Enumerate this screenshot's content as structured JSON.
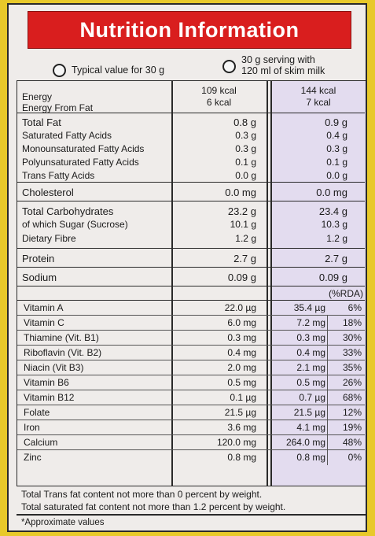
{
  "title": "Nutrition Information",
  "options": {
    "option1": "Typical value for 30 g",
    "option2_line1": "30 g serving with",
    "option2_line2": "120 ml of skim milk"
  },
  "energy": {
    "label_energy": "Energy",
    "label_fat": "Energy From Fat",
    "col1_energy": "109 kcal",
    "col1_fat": "6 kcal",
    "col2_energy": "144 kcal",
    "col2_fat": "7 kcal"
  },
  "fats": [
    {
      "label": "Total Fat",
      "col1": "0.8 g",
      "col2": "0.9 g"
    },
    {
      "label": "Saturated Fatty Acids",
      "col1": "0.3 g",
      "col2": "0.4 g"
    },
    {
      "label": "Monounsaturated Fatty Acids",
      "col1": "0.3 g",
      "col2": "0.3 g"
    },
    {
      "label": "Polyunsaturated Fatty Acids",
      "col1": "0.1 g",
      "col2": "0.1 g"
    },
    {
      "label": "Trans Fatty Acids",
      "col1": "0.0 g",
      "col2": "0.0 g"
    }
  ],
  "cholesterol": {
    "label": "Cholesterol",
    "col1": "0.0 mg",
    "col2": "0.0 mg"
  },
  "carbs": [
    {
      "label": "Total Carbohydrates",
      "col1": "23.2 g",
      "col2": "23.4 g"
    },
    {
      "label": "of which Sugar (Sucrose)",
      "col1": "10.1 g",
      "col2": "10.3 g"
    },
    {
      "label": "Dietary Fibre",
      "col1": "1.2 g",
      "col2": "1.2 g"
    }
  ],
  "protein": {
    "label": "Protein",
    "col1": "2.7 g",
    "col2": "2.7 g"
  },
  "sodium": {
    "label": "Sodium",
    "col1": "0.09 g",
    "col2": "0.09 g"
  },
  "rda_header": "(%RDA)",
  "vitamins": [
    {
      "label": "Vitamin A",
      "col1": "22.0 µg",
      "col2": "35.4 µg",
      "rda": "6%"
    },
    {
      "label": "Vitamin C",
      "col1": "6.0 mg",
      "col2": "7.2 mg",
      "rda": "18%"
    },
    {
      "label": "Thiamine (Vit. B1)",
      "col1": "0.3 mg",
      "col2": "0.3 mg",
      "rda": "30%"
    },
    {
      "label": "Riboflavin (Vit. B2)",
      "col1": "0.4 mg",
      "col2": "0.4 mg",
      "rda": "33%"
    },
    {
      "label": "Niacin (Vit B3)",
      "col1": "2.0 mg",
      "col2": "2.1 mg",
      "rda": "35%"
    },
    {
      "label": "Vitamin B6",
      "col1": "0.5 mg",
      "col2": "0.5 mg",
      "rda": "26%"
    },
    {
      "label": "Vitamin B12",
      "col1": "0.1 µg",
      "col2": "0.7 µg",
      "rda": "68%"
    },
    {
      "label": "Folate",
      "col1": "21.5 µg",
      "col2": "21.5 µg",
      "rda": "12%"
    },
    {
      "label": "Iron",
      "col1": "3.6 mg",
      "col2": "4.1 mg",
      "rda": "19%"
    },
    {
      "label": "Calcium",
      "col1": "120.0 mg",
      "col2": "264.0 mg",
      "rda": "48%"
    },
    {
      "label": "Zinc",
      "col1": "0.8 mg",
      "col2": "0.8 mg",
      "rda": "0%"
    }
  ],
  "footnotes": {
    "trans": "Total Trans fat content not more than 0 percent by weight.",
    "saturated": "Total saturated fat content not more than 1.2 percent by weight.",
    "approx": "*Approximate values"
  },
  "colors": {
    "title_bg": "#d91e1e",
    "package_bg": "#e8c92a",
    "shaded_column": "#e3dcef"
  }
}
